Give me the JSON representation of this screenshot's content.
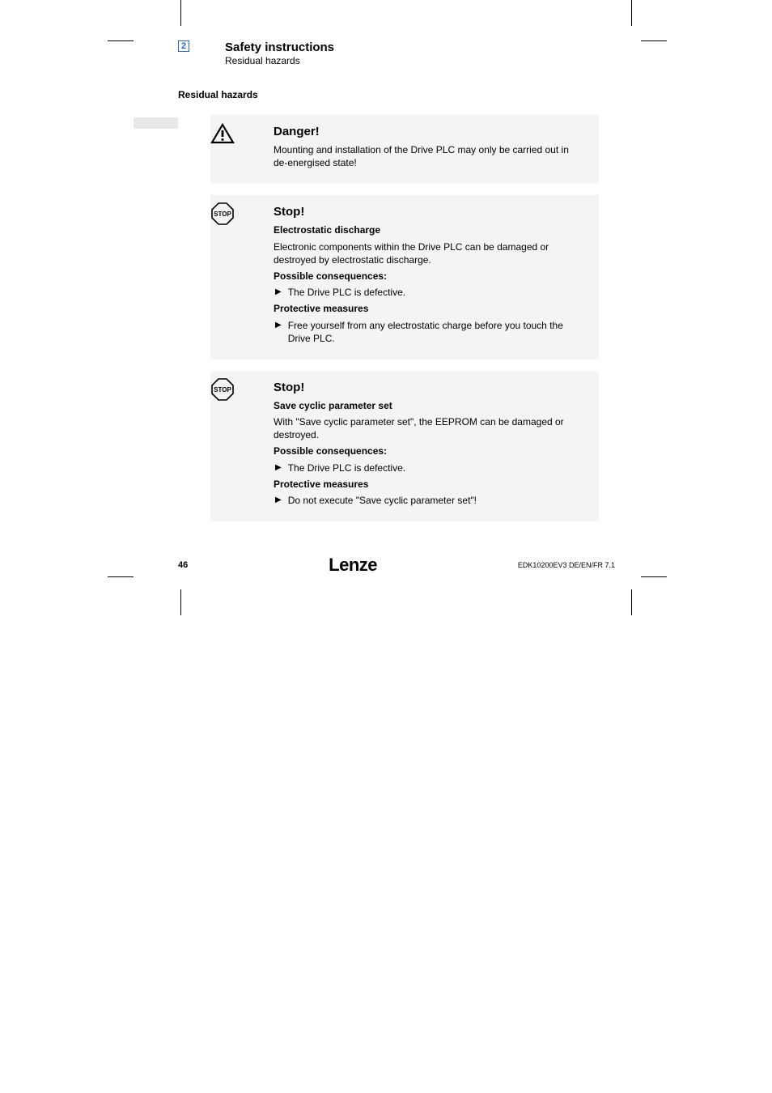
{
  "cropmarks": {
    "color": "#000000",
    "long": 32,
    "thick": 1
  },
  "header": {
    "chapter_number": "2",
    "chapter_box_color": "#2864c8",
    "title": "Safety instructions",
    "subtitle": "Residual hazards"
  },
  "section_heading": "Residual hazards",
  "notices": [
    {
      "icon": "warning-triangle",
      "title": "Danger!",
      "paras": [
        {
          "text": "Mounting and installation of the Drive PLC may only be carried out in de-energised state!"
        }
      ]
    },
    {
      "icon": "stop-octagon",
      "title": "Stop!",
      "paras": [
        {
          "text": "Electrostatic discharge",
          "bold": true
        },
        {
          "text": "Electronic components within the Drive PLC can be damaged or destroyed by electrostatic discharge."
        },
        {
          "text": "Possible consequences:",
          "bold": true
        },
        {
          "text": "The Drive PLC is defective.",
          "bullet": true
        },
        {
          "text": "Protective measures",
          "bold": true
        },
        {
          "text": "Free yourself from any electrostatic charge before you touch the Drive PLC.",
          "bullet": true
        }
      ]
    },
    {
      "icon": "stop-octagon",
      "title": "Stop!",
      "paras": [
        {
          "text": "Save cyclic parameter set",
          "bold": true
        },
        {
          "text": "With \"Save cyclic parameter set\", the EEPROM can be damaged or destroyed."
        },
        {
          "text": "Possible consequences:",
          "bold": true
        },
        {
          "text": "The Drive PLC is defective.",
          "bullet": true
        },
        {
          "text": "Protective measures",
          "bold": true
        },
        {
          "text": "Do not execute \"Save cyclic parameter set\"!",
          "bullet": true
        }
      ]
    }
  ],
  "footer": {
    "page": "46",
    "brand": "Lenze",
    "docid": "EDK10200EV3  DE/EN/FR  7.1"
  },
  "colors": {
    "notice_bg": "#f4f4f4",
    "text": "#000000",
    "gray_bar": "#e8e8e8"
  }
}
